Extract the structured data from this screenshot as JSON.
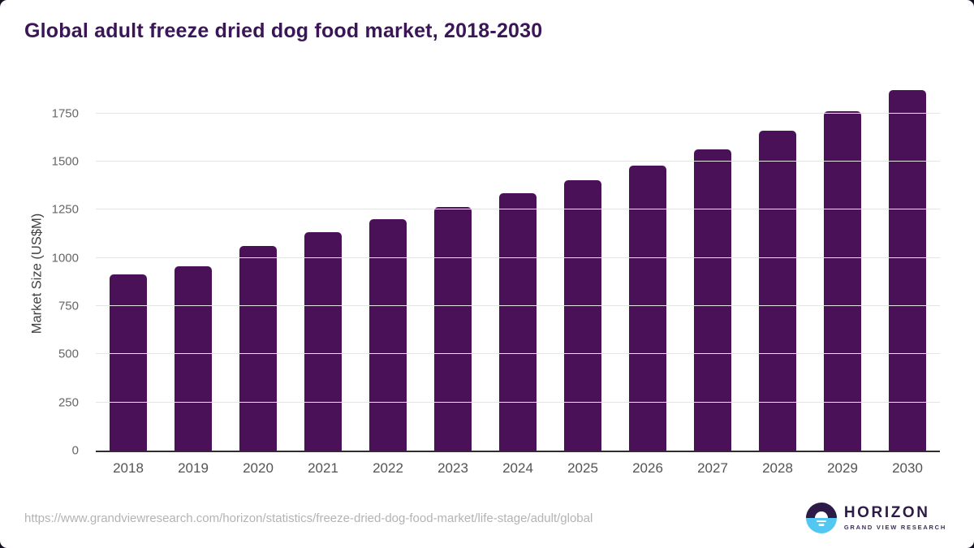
{
  "chart_data": {
    "type": "bar",
    "title": "Global adult freeze dried dog food market, 2018-2030",
    "categories": [
      "2018",
      "2019",
      "2020",
      "2021",
      "2022",
      "2023",
      "2024",
      "2025",
      "2026",
      "2027",
      "2028",
      "2029",
      "2030"
    ],
    "values": [
      915,
      955,
      1060,
      1135,
      1200,
      1265,
      1335,
      1405,
      1480,
      1565,
      1660,
      1760,
      1870
    ],
    "xlabel": "",
    "ylabel": "Market Size (US$M)",
    "ylim": [
      0,
      1900
    ],
    "yticks": [
      0,
      250,
      500,
      750,
      1000,
      1250,
      1500,
      1750
    ],
    "grid": true,
    "legend": false
  },
  "footer": {
    "source_url": "https://www.grandviewresearch.com/horizon/statistics/freeze-dried-dog-food-market/life-stage/adult/global",
    "logo_title": "HORIZON",
    "logo_subtitle": "GRAND VIEW RESEARCH"
  },
  "colors": {
    "page_background": "#15101f",
    "card_background": "#ffffff",
    "title": "#3b1656",
    "bar": "#4a1158",
    "grid": "#e4e4e4",
    "axis_line": "#2e2e2e",
    "tick_label": "#666666",
    "x_label": "#545454",
    "y_axis_label": "#404040",
    "url": "#b3b3b3",
    "logo_purple": "#2e1a47",
    "logo_blue": "#52c7f2"
  }
}
